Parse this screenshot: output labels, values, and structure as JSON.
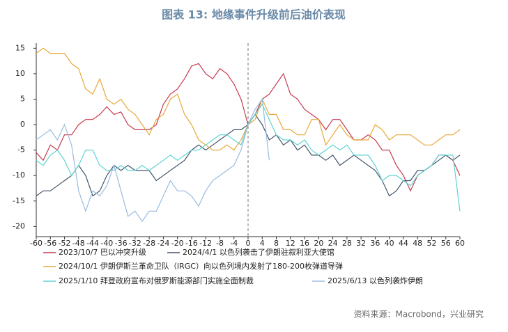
{
  "chart_data": {
    "type": "line",
    "title": "图表 13: 地缘事件升级前后油价表现",
    "source": "资料来源：Macrobond，兴业研究",
    "x": [
      -60,
      -58,
      -56,
      -54,
      -52,
      -50,
      -48,
      -46,
      -44,
      -42,
      -40,
      -38,
      -36,
      -34,
      -32,
      -30,
      -28,
      -26,
      -24,
      -22,
      -20,
      -18,
      -16,
      -14,
      -12,
      -10,
      -8,
      -6,
      -4,
      -2,
      0,
      2,
      4,
      6,
      8,
      10,
      12,
      14,
      16,
      18,
      20,
      22,
      24,
      26,
      28,
      30,
      32,
      34,
      36,
      38,
      40,
      42,
      44,
      46,
      48,
      50,
      52,
      54,
      56,
      58,
      60
    ],
    "xlim": [
      -60,
      60
    ],
    "xticks": [
      -60,
      -56,
      -52,
      -48,
      -44,
      -40,
      -36,
      -32,
      -28,
      -24,
      -20,
      -16,
      -12,
      -8,
      -4,
      0,
      4,
      8,
      12,
      16,
      20,
      24,
      28,
      32,
      36,
      40,
      44,
      48,
      52,
      56,
      60
    ],
    "ylim": [
      -22,
      16
    ],
    "yticks": [
      -20,
      -15,
      -10,
      -5,
      0,
      5,
      10,
      15
    ],
    "event_line_x": 0,
    "series": [
      {
        "name": "2023/10/7 巴以冲突升级",
        "color": "#c8394f",
        "values": [
          -5.5,
          -7,
          -4,
          -5,
          -2,
          -2,
          0,
          1,
          1,
          2,
          3.5,
          2,
          2.5,
          0,
          -1,
          -1,
          -1,
          0,
          4,
          6,
          7,
          9,
          11.5,
          12,
          10,
          9,
          11,
          10,
          8,
          5,
          0,
          2,
          5,
          6,
          8,
          10,
          6,
          5,
          3,
          2,
          1,
          -1,
          1,
          1,
          -1,
          -3,
          -3,
          -2,
          -3,
          -5,
          -5,
          -8,
          -10,
          -13,
          -10,
          -9,
          -8,
          -6,
          -6,
          -7,
          -10
        ]
      },
      {
        "name": "2024/4/1 以色列袭击了伊朗驻叙利亚大使馆",
        "color": "#44546a",
        "values": [
          -14,
          -13,
          -13,
          -12,
          -11,
          -10,
          -8,
          -10,
          -14,
          -13,
          -10,
          -8,
          -9,
          -8,
          -9,
          -9,
          -9,
          -11,
          -10,
          -9,
          -8,
          -7,
          -5,
          -4,
          -5,
          -4,
          -3,
          -2,
          -1,
          -1,
          0,
          2,
          0,
          -3,
          -2,
          -4,
          -3,
          -5,
          -4,
          -6,
          -6,
          -7,
          -6,
          -8,
          -7,
          -6,
          -7,
          -8,
          -9,
          -11,
          -14,
          -13,
          -11,
          -11,
          -9,
          -9,
          -8,
          -7,
          -6,
          -7,
          -6
        ]
      },
      {
        "name": "2024/10/1 伊朗伊斯兰革命卫队（IRGC）向以色列境内发射了180-200枚弹道导弹",
        "color": "#e8a838",
        "values": [
          14,
          15,
          14,
          14,
          14,
          12,
          11,
          7,
          6,
          9,
          5,
          4,
          5,
          3,
          2,
          0,
          -2,
          1,
          2,
          5,
          6,
          2,
          0,
          -3,
          -4,
          -5,
          -5,
          -4,
          -5,
          -3,
          0,
          1,
          5,
          2,
          2,
          -1,
          -1,
          -2,
          -2,
          1,
          1,
          -4,
          -2,
          0,
          -2,
          -3,
          -3,
          -3,
          0,
          -1,
          -3,
          -2,
          -2,
          -2,
          -3,
          -4,
          -4,
          -3,
          -2,
          -2,
          -1
        ]
      },
      {
        "name": "2025/1/10 拜登政府宣布对俄罗斯能源部门实施全面制裁",
        "color": "#5fd3d3",
        "values": [
          -7,
          -8,
          -6,
          -5,
          -7,
          -10,
          -8,
          -5,
          -5,
          -8,
          -9,
          -9,
          -8,
          -9,
          -9,
          -8,
          -9,
          -8,
          -7,
          -6,
          -7,
          -6,
          -5,
          -5,
          -4,
          -3,
          -2,
          -2,
          -3,
          -4,
          0,
          2,
          4,
          1,
          -2,
          -3,
          -3,
          -4,
          -3,
          -5,
          -6,
          -5,
          -4,
          -5,
          -4,
          -6,
          -6,
          -6,
          -8,
          -11,
          -10,
          -10,
          -11,
          -12,
          -10,
          -9,
          -8,
          -6,
          -6,
          -6,
          -17
        ]
      },
      {
        "name": "2025/6/13 以色列袭炸伊朗",
        "color": "#9bbbe0",
        "values": [
          -3,
          -2,
          -1,
          -3,
          0,
          -4,
          -13,
          -17,
          -13,
          -14,
          -12,
          -8,
          -13,
          -18,
          -17,
          -19,
          -17,
          -17,
          -14,
          -11,
          -13,
          -13,
          -14,
          -16,
          -13,
          -11,
          -10,
          -9,
          -8,
          -5,
          0,
          3,
          5,
          -7,
          null,
          null,
          null,
          null,
          null,
          null,
          null,
          null,
          null,
          null,
          null,
          null,
          null,
          null,
          null,
          null,
          null,
          null,
          null,
          null,
          null,
          null,
          null,
          null,
          null,
          null,
          null
        ]
      }
    ]
  }
}
